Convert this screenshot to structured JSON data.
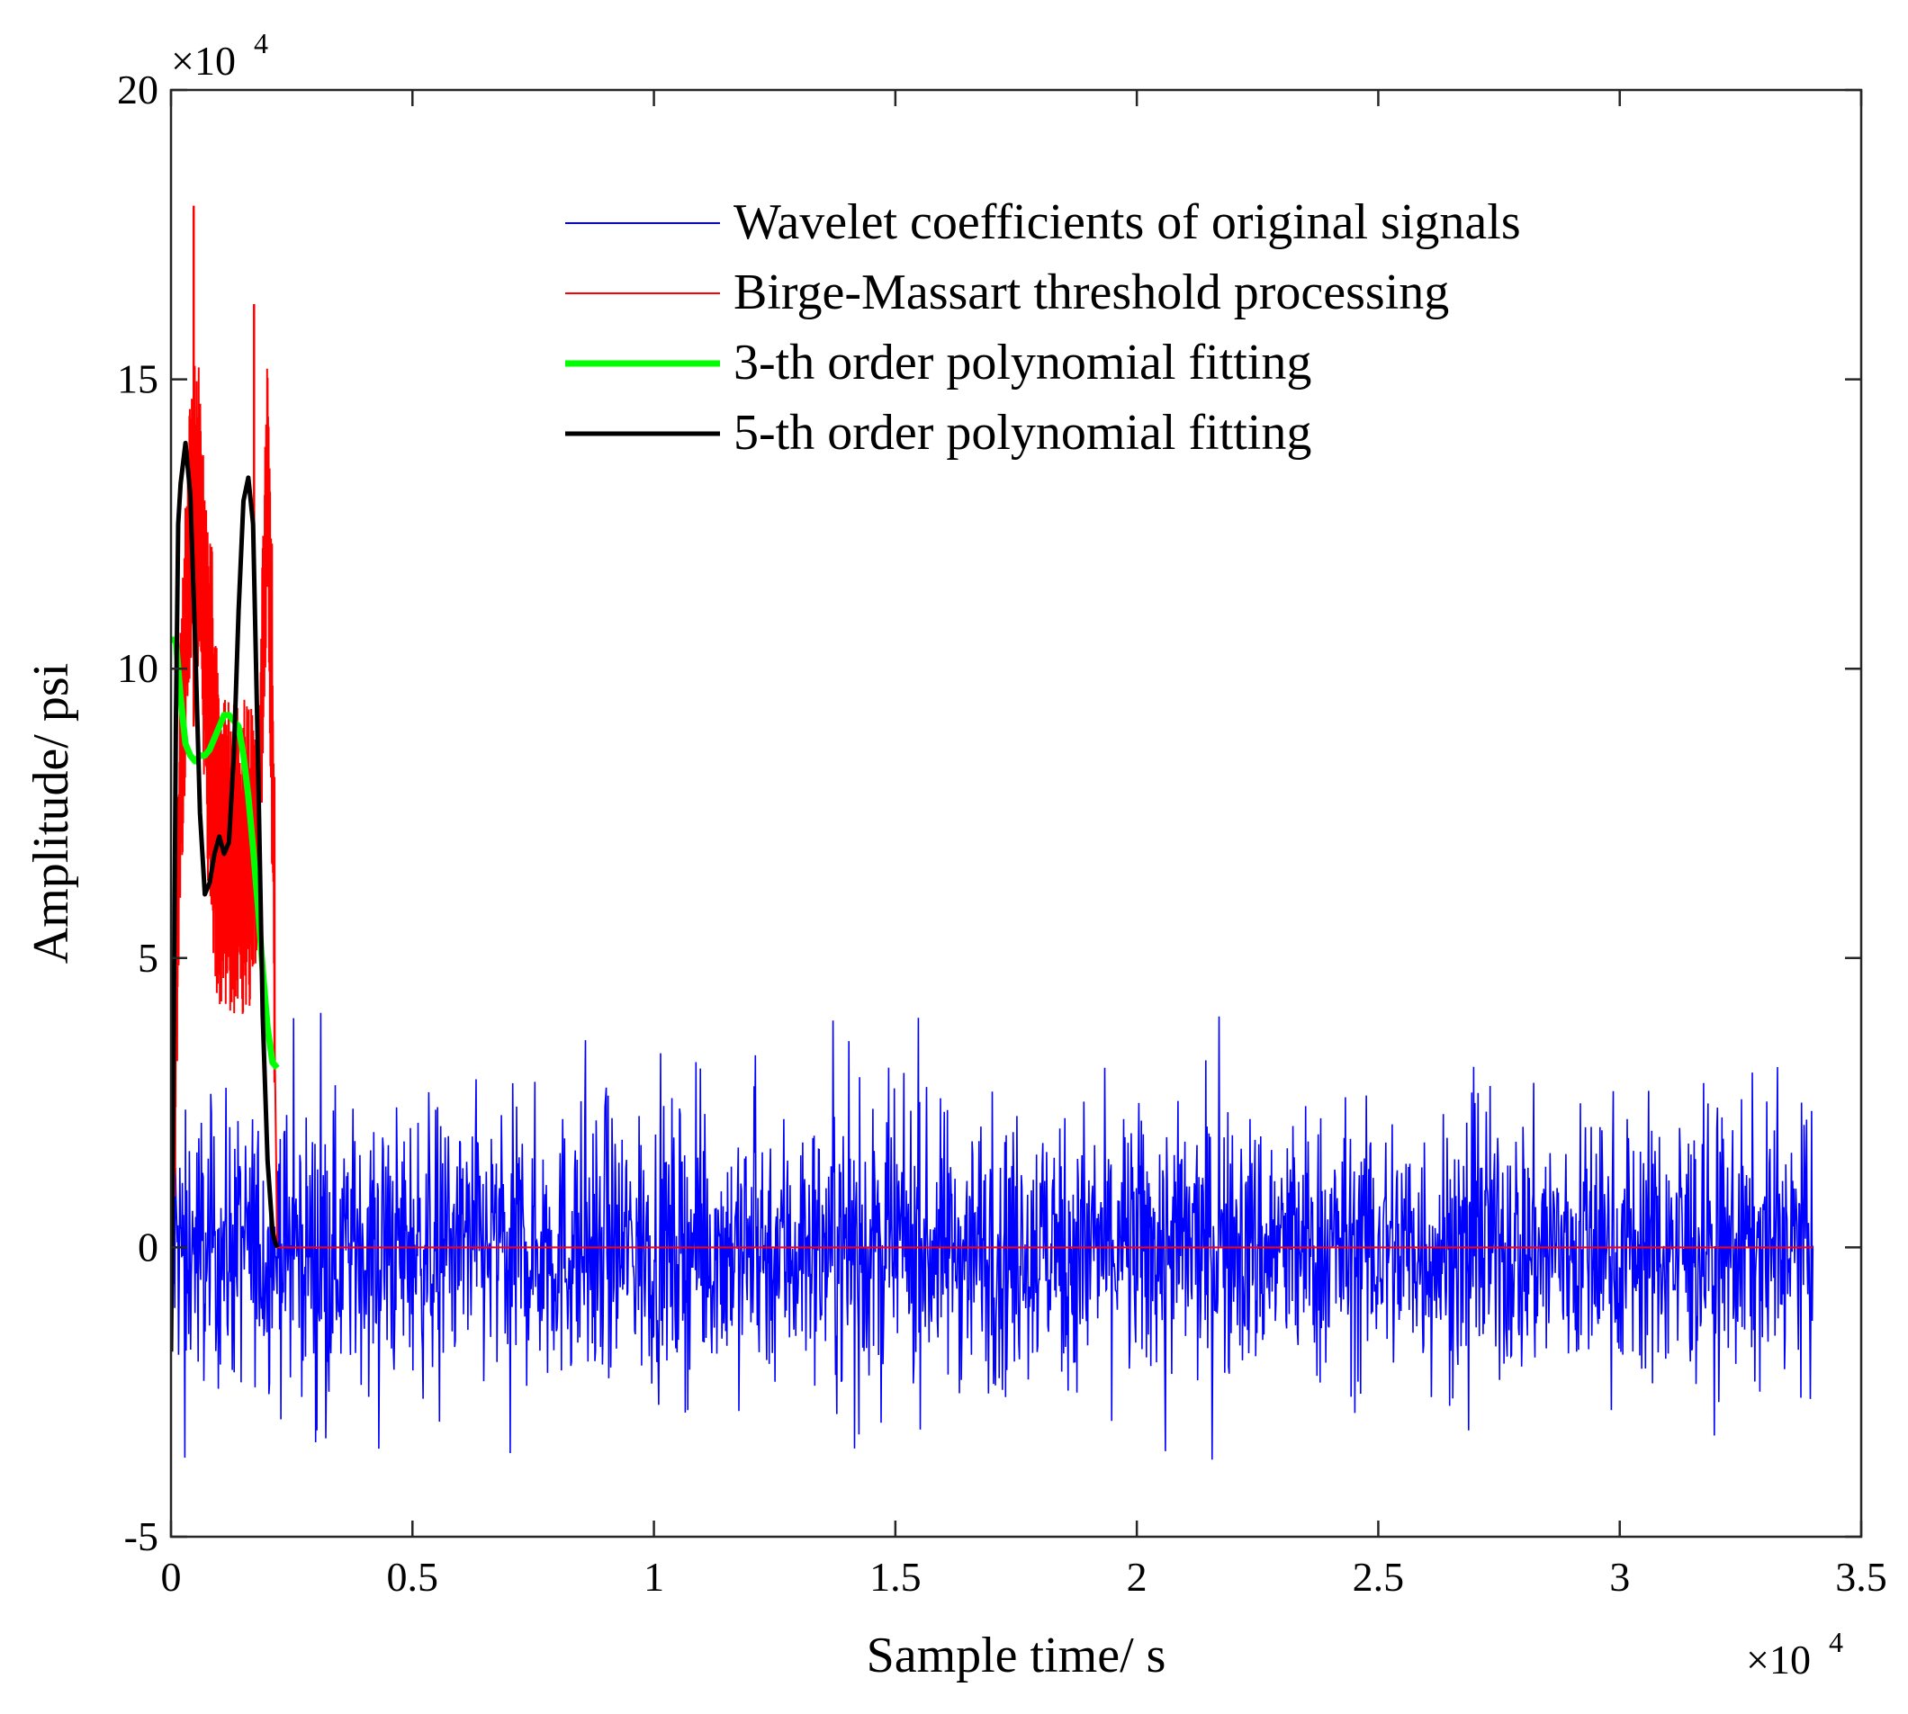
{
  "chart_data": {
    "type": "line",
    "title": "",
    "xlabel": "Sample time/ s",
    "ylabel": "Amplitude/ psi",
    "x_exponent_label": "×10",
    "x_exponent_power": "4",
    "y_exponent_label": "×10",
    "y_exponent_power": "4",
    "xlim": [
      0,
      3.5
    ],
    "ylim": [
      -5,
      20
    ],
    "xticks": [
      0,
      0.5,
      1,
      1.5,
      2,
      2.5,
      3,
      3.5
    ],
    "xtick_labels": [
      "0",
      "0.5",
      "1",
      "1.5",
      "2",
      "2.5",
      "3",
      "3.5"
    ],
    "yticks": [
      -5,
      0,
      5,
      10,
      15,
      20
    ],
    "ytick_labels": [
      "-5",
      "0",
      "5",
      "10",
      "15",
      "20"
    ],
    "grid": false,
    "legend_position": "top-right",
    "series": [
      {
        "name": "Wavelet coefficients of original signals",
        "color": "#0000ff",
        "style": "noise",
        "x_range": [
          0,
          3.4
        ],
        "amplitude_typical": 2.5,
        "amplitude_max": 4.2,
        "amplitude_min": -4.5
      },
      {
        "name": "Birge-Massart threshold processing",
        "color": "#ff0000",
        "style": "thresholded",
        "x": [
          0,
          0.02,
          0.04,
          0.06,
          0.08,
          0.1,
          0.12,
          0.14,
          0.16,
          0.18,
          0.2,
          0.21,
          0.22,
          0.25,
          3.4
        ],
        "upper": [
          2,
          11,
          15,
          15.5,
          13,
          9.5,
          9.5,
          9.5,
          9.5,
          9,
          15.5,
          12,
          4,
          0,
          0
        ],
        "lower": [
          -2.5,
          6,
          10,
          10,
          5.5,
          4,
          4,
          4,
          4,
          5,
          11,
          6,
          -2.8,
          0,
          0
        ],
        "peak": 18
      },
      {
        "name": "3-th order polynomial fitting",
        "color": "#00ff00",
        "style": "line",
        "x": [
          0,
          0.01,
          0.02,
          0.03,
          0.04,
          0.05,
          0.06,
          0.07,
          0.08,
          0.09,
          0.1,
          0.11,
          0.12,
          0.13,
          0.14,
          0.15,
          0.16,
          0.17,
          0.18,
          0.19,
          0.2,
          0.21,
          0.22
        ],
        "y": [
          10.5,
          10.5,
          9.5,
          8.7,
          8.5,
          8.4,
          8.5,
          8.5,
          8.6,
          8.8,
          9.0,
          9.2,
          9.2,
          9.1,
          9.0,
          8.5,
          7.8,
          6.9,
          5.9,
          4.8,
          3.8,
          3.2,
          3.1
        ]
      },
      {
        "name": "5-th order polynomial fitting",
        "color": "#000000",
        "style": "line",
        "x": [
          0,
          0.005,
          0.01,
          0.015,
          0.02,
          0.03,
          0.04,
          0.05,
          0.06,
          0.07,
          0.08,
          0.09,
          0.1,
          0.11,
          0.12,
          0.13,
          0.14,
          0.15,
          0.16,
          0.17,
          0.18,
          0.19,
          0.2,
          0.21,
          0.215,
          0.22
        ],
        "y": [
          -1.8,
          3,
          9,
          12.5,
          13.2,
          13.9,
          13.0,
          10.5,
          7.5,
          6.1,
          6.3,
          6.8,
          7.1,
          6.8,
          7.0,
          8.5,
          11.0,
          12.9,
          13.3,
          12.5,
          8.5,
          4.0,
          1.5,
          0.3,
          0.1,
          0
        ]
      }
    ]
  }
}
